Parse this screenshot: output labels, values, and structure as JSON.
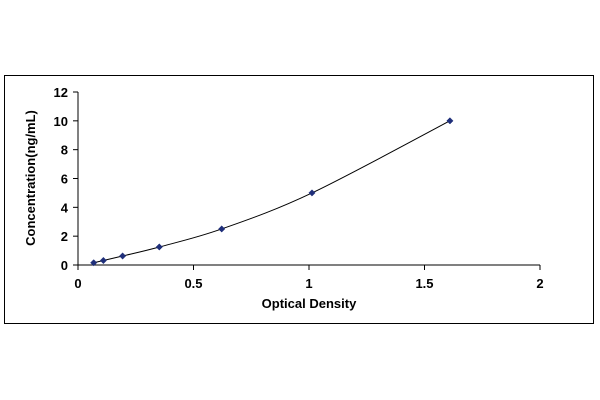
{
  "chart_data": {
    "type": "scatter",
    "title": "",
    "xlabel": "Optical Density",
    "ylabel": "Concentration(ng/mL)",
    "xlim": [
      0,
      2
    ],
    "ylim": [
      0,
      12
    ],
    "x_ticks": [
      "0",
      "0.5",
      "1",
      "1.5",
      "2"
    ],
    "y_ticks": [
      "0",
      "2",
      "4",
      "6",
      "8",
      "10",
      "12"
    ],
    "grid": false,
    "legend": "none",
    "series": [
      {
        "points": [
          {
            "x": 0.068,
            "y": 0.156
          },
          {
            "x": 0.11,
            "y": 0.312
          },
          {
            "x": 0.193,
            "y": 0.625
          },
          {
            "x": 0.352,
            "y": 1.25
          },
          {
            "x": 0.622,
            "y": 2.5
          },
          {
            "x": 1.013,
            "y": 5
          },
          {
            "x": 1.61,
            "y": 10
          }
        ],
        "trendline": true
      }
    ],
    "colors": {
      "marker": "#1f2f7a",
      "line": "#000000",
      "axis": "#000000"
    }
  }
}
